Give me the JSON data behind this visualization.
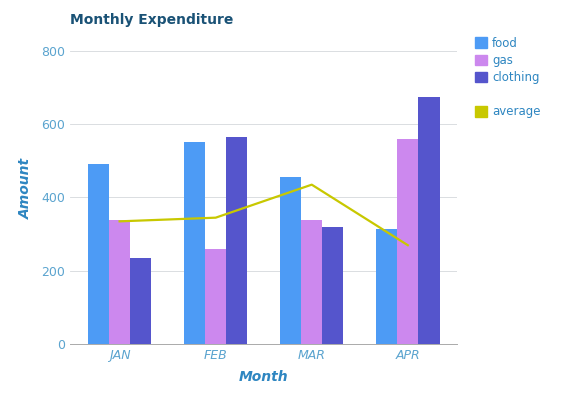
{
  "title": "Monthly Expenditure",
  "xlabel": "Month",
  "ylabel": "Amount",
  "months": [
    "JAN",
    "FEB",
    "MAR",
    "APR"
  ],
  "food": [
    490,
    550,
    455,
    315
  ],
  "gas": [
    340,
    260,
    340,
    560
  ],
  "clothing": [
    235,
    565,
    320,
    675
  ],
  "average": [
    335,
    345,
    435,
    270
  ],
  "food_color": "#4D9BF5",
  "gas_color": "#CC88EE",
  "clothing_color": "#5555CC",
  "average_color": "#C8C800",
  "title_color": "#1A5276",
  "axis_label_color": "#2E86C1",
  "tick_label_color": "#5BA4CF",
  "ylim": [
    0,
    850
  ],
  "yticks": [
    0,
    200,
    400,
    600,
    800
  ],
  "bar_width": 0.22,
  "grid_color": "#D5D8DC",
  "background_color": "#FFFFFF",
  "legend_food": "food",
  "legend_gas": "gas",
  "legend_clothing": "clothing",
  "legend_average": "average"
}
